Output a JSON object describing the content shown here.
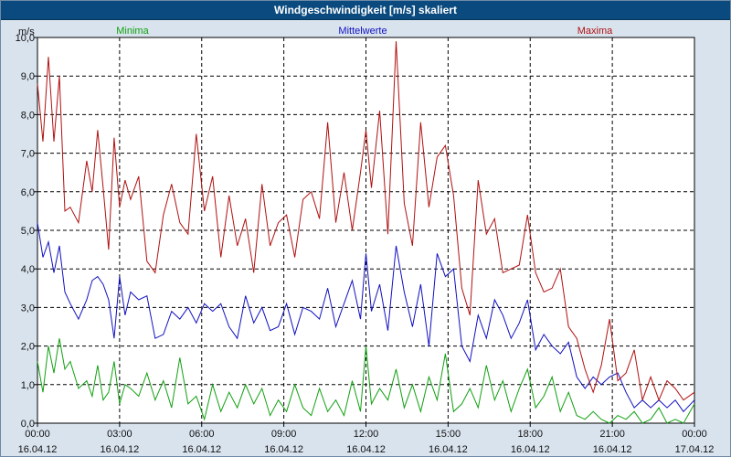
{
  "window": {
    "title": "Windgeschwindigkeit [m/s] skaliert"
  },
  "colors": {
    "minima": "#10a010",
    "mittel": "#1010c0",
    "maxima": "#b01010",
    "grid": "#000000",
    "titlebar": "#0a4a7e"
  },
  "chart_data": {
    "type": "line",
    "title": "Windgeschwindigkeit [m/s] skaliert",
    "ylabel": "m/s",
    "ylim": [
      0,
      10
    ],
    "yticks": [
      "0,0",
      "1,0",
      "2,0",
      "3,0",
      "4,0",
      "5,0",
      "6,0",
      "7,0",
      "8,0",
      "9,0",
      "10,0"
    ],
    "xlim": [
      0,
      24
    ],
    "xticks": [
      {
        "time": "00:00",
        "date": "16.04.12"
      },
      {
        "time": "03:00",
        "date": "16.04.12"
      },
      {
        "time": "06:00",
        "date": "16.04.12"
      },
      {
        "time": "09:00",
        "date": "16.04.12"
      },
      {
        "time": "12:00",
        "date": "16.04.12"
      },
      {
        "time": "15:00",
        "date": "16.04.12"
      },
      {
        "time": "18:00",
        "date": "16.04.12"
      },
      {
        "time": "21:00",
        "date": "16.04.12"
      },
      {
        "time": "00:00",
        "date": "17.04.12"
      }
    ],
    "grid": true,
    "series": [
      {
        "name": "Minima",
        "x": [
          0,
          0.2,
          0.4,
          0.6,
          0.8,
          1.0,
          1.2,
          1.5,
          1.8,
          2.0,
          2.2,
          2.4,
          2.6,
          2.8,
          3.0,
          3.2,
          3.4,
          3.7,
          4.0,
          4.3,
          4.6,
          4.9,
          5.2,
          5.5,
          5.8,
          6.1,
          6.4,
          6.7,
          7.0,
          7.3,
          7.6,
          7.9,
          8.2,
          8.5,
          8.8,
          9.1,
          9.4,
          9.7,
          10.0,
          10.3,
          10.6,
          10.9,
          11.2,
          11.5,
          11.8,
          12.0,
          12.2,
          12.5,
          12.8,
          13.1,
          13.4,
          13.7,
          14.0,
          14.3,
          14.6,
          14.9,
          15.2,
          15.5,
          15.8,
          16.1,
          16.4,
          16.7,
          17.0,
          17.3,
          17.6,
          17.9,
          18.2,
          18.5,
          18.8,
          19.1,
          19.4,
          19.7,
          20.0,
          20.3,
          20.6,
          20.9,
          21.2,
          21.5,
          21.8,
          22.1,
          22.4,
          22.7,
          23.0,
          23.3,
          23.6,
          24.0
        ],
        "values": [
          1.6,
          0.8,
          2.0,
          1.3,
          2.2,
          1.4,
          1.6,
          0.9,
          1.1,
          0.7,
          1.5,
          0.6,
          0.8,
          1.6,
          0.5,
          1.0,
          0.9,
          0.7,
          1.3,
          0.6,
          1.1,
          0.4,
          1.7,
          0.5,
          0.7,
          0.1,
          1.0,
          0.3,
          0.8,
          0.4,
          1.0,
          0.5,
          0.9,
          0.2,
          0.6,
          0.3,
          1.0,
          0.4,
          0.2,
          0.9,
          0.3,
          0.6,
          0.2,
          1.1,
          0.3,
          2.0,
          0.5,
          0.9,
          0.6,
          1.4,
          0.4,
          1.0,
          0.3,
          1.2,
          0.6,
          1.8,
          0.3,
          0.5,
          0.9,
          0.4,
          1.5,
          0.6,
          1.1,
          0.3,
          0.9,
          1.4,
          0.4,
          0.7,
          1.2,
          0.3,
          0.8,
          0.2,
          0.1,
          0.3,
          0.1,
          0.0,
          0.2,
          0.1,
          0.3,
          0.0,
          0.1,
          0.4,
          0.0,
          0.1,
          0.0,
          0.5
        ]
      },
      {
        "name": "Mittelwerte",
        "x": [
          0,
          0.2,
          0.4,
          0.6,
          0.8,
          1.0,
          1.2,
          1.5,
          1.8,
          2.0,
          2.2,
          2.4,
          2.6,
          2.8,
          3.0,
          3.2,
          3.4,
          3.7,
          4.0,
          4.3,
          4.6,
          4.9,
          5.2,
          5.5,
          5.8,
          6.1,
          6.4,
          6.7,
          7.0,
          7.3,
          7.6,
          7.9,
          8.2,
          8.5,
          8.8,
          9.1,
          9.4,
          9.7,
          10.0,
          10.3,
          10.6,
          10.9,
          11.2,
          11.5,
          11.8,
          12.0,
          12.2,
          12.5,
          12.8,
          13.1,
          13.4,
          13.7,
          14.0,
          14.3,
          14.6,
          14.9,
          15.2,
          15.5,
          15.8,
          16.1,
          16.4,
          16.7,
          17.0,
          17.3,
          17.6,
          17.9,
          18.2,
          18.5,
          18.8,
          19.1,
          19.4,
          19.7,
          20.0,
          20.3,
          20.6,
          20.9,
          21.2,
          21.5,
          21.8,
          22.1,
          22.4,
          22.7,
          23.0,
          23.3,
          23.6,
          24.0
        ],
        "values": [
          5.2,
          4.3,
          4.7,
          3.9,
          4.6,
          3.4,
          3.1,
          2.7,
          3.2,
          3.7,
          3.8,
          3.6,
          3.2,
          2.2,
          3.8,
          2.8,
          3.4,
          3.2,
          3.3,
          2.2,
          2.3,
          2.9,
          2.7,
          3.0,
          2.6,
          3.1,
          2.9,
          3.1,
          2.5,
          2.2,
          3.3,
          2.6,
          3.0,
          2.4,
          2.5,
          3.1,
          2.3,
          3.0,
          2.9,
          2.7,
          3.5,
          2.5,
          3.1,
          3.7,
          2.7,
          4.4,
          2.9,
          3.6,
          2.4,
          4.6,
          3.4,
          2.5,
          3.6,
          2.0,
          4.4,
          3.8,
          4.0,
          2.0,
          1.6,
          2.8,
          2.2,
          3.2,
          2.8,
          2.2,
          2.6,
          3.2,
          1.9,
          2.3,
          2.0,
          1.8,
          2.1,
          1.2,
          0.9,
          1.2,
          1.0,
          1.2,
          1.3,
          0.8,
          0.4,
          0.6,
          0.4,
          0.6,
          0.4,
          0.6,
          0.3,
          0.6
        ]
      },
      {
        "name": "Maxima",
        "x": [
          0,
          0.2,
          0.4,
          0.6,
          0.8,
          1.0,
          1.2,
          1.5,
          1.8,
          2.0,
          2.2,
          2.4,
          2.6,
          2.8,
          3.0,
          3.2,
          3.4,
          3.7,
          4.0,
          4.3,
          4.6,
          4.9,
          5.2,
          5.5,
          5.8,
          6.1,
          6.4,
          6.7,
          7.0,
          7.3,
          7.6,
          7.9,
          8.2,
          8.5,
          8.8,
          9.1,
          9.4,
          9.7,
          10.0,
          10.3,
          10.6,
          10.9,
          11.2,
          11.5,
          11.8,
          12.0,
          12.2,
          12.5,
          12.8,
          13.1,
          13.4,
          13.7,
          14.0,
          14.3,
          14.6,
          14.9,
          15.2,
          15.5,
          15.8,
          16.1,
          16.4,
          16.7,
          17.0,
          17.3,
          17.6,
          17.9,
          18.2,
          18.5,
          18.8,
          19.1,
          19.4,
          19.7,
          20.0,
          20.3,
          20.6,
          20.9,
          21.2,
          21.5,
          21.8,
          22.1,
          22.4,
          22.7,
          23.0,
          23.3,
          23.6,
          24.0
        ],
        "values": [
          8.8,
          7.3,
          9.5,
          7.3,
          9.0,
          5.5,
          5.6,
          5.2,
          6.8,
          6.0,
          7.6,
          6.1,
          4.5,
          7.4,
          5.6,
          6.3,
          5.8,
          6.4,
          4.2,
          3.9,
          5.4,
          6.2,
          5.2,
          4.9,
          7.5,
          5.5,
          6.4,
          4.3,
          5.9,
          4.6,
          5.3,
          3.9,
          6.2,
          4.6,
          5.2,
          5.4,
          4.3,
          5.8,
          6.0,
          5.3,
          7.8,
          5.2,
          6.5,
          5.0,
          6.5,
          7.6,
          6.1,
          8.1,
          4.9,
          9.9,
          5.7,
          4.6,
          7.8,
          5.6,
          6.9,
          7.2,
          5.9,
          3.5,
          2.8,
          6.3,
          4.9,
          5.3,
          3.9,
          4.0,
          4.1,
          5.4,
          3.9,
          3.4,
          3.5,
          4.0,
          2.5,
          2.2,
          1.4,
          0.8,
          1.5,
          2.7,
          1.1,
          1.3,
          1.9,
          0.6,
          1.2,
          0.6,
          1.1,
          0.9,
          0.6,
          0.8
        ]
      }
    ]
  }
}
